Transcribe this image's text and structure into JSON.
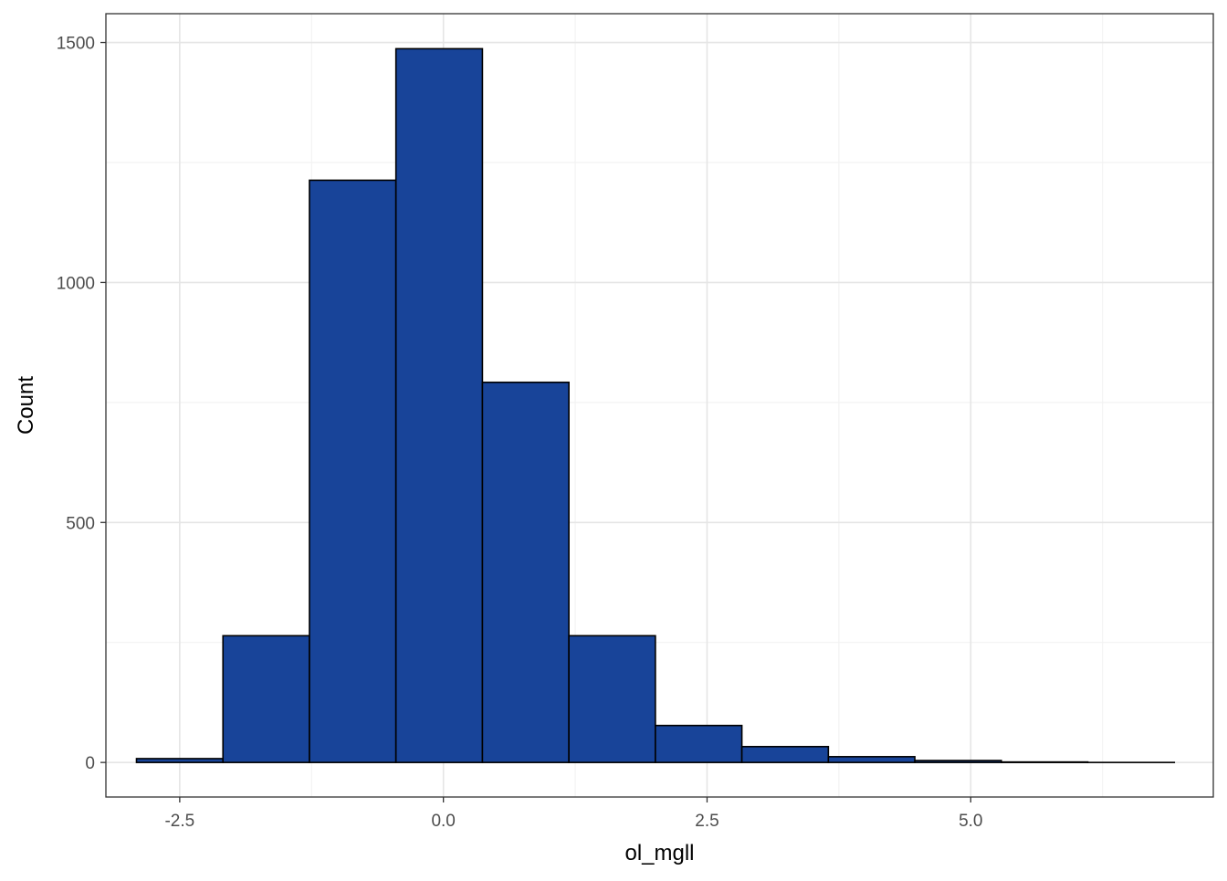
{
  "colors": {
    "bar_fill": "#184499",
    "bar_stroke": "#000000",
    "grid_major": "#e5e5e5",
    "grid_minor": "#f2f2f2",
    "panel_border": "#333333",
    "tick_text": "#4d4d4d"
  },
  "chart_data": {
    "type": "bar",
    "subtype": "histogram",
    "title": "",
    "xlabel": "ol_mgll",
    "ylabel": "Count",
    "xlim": [
      -3.2,
      7.3
    ],
    "ylim": [
      -72,
      1560
    ],
    "x_ticks": [
      -2.5,
      0.0,
      2.5,
      5.0
    ],
    "x_tick_labels": [
      "-2.5",
      "0.0",
      "2.5",
      "5.0"
    ],
    "y_ticks": [
      0,
      500,
      1000,
      1500
    ],
    "y_tick_labels": [
      "0",
      "500",
      "1000",
      "1500"
    ],
    "grid": true,
    "legend": "none",
    "bins": [
      {
        "x0": -2.91,
        "x1": -2.09,
        "count": 8
      },
      {
        "x0": -2.09,
        "x1": -1.27,
        "count": 264
      },
      {
        "x0": -1.27,
        "x1": -0.45,
        "count": 1213
      },
      {
        "x0": -0.45,
        "x1": 0.37,
        "count": 1487
      },
      {
        "x0": 0.37,
        "x1": 1.19,
        "count": 792
      },
      {
        "x0": 1.19,
        "x1": 2.01,
        "count": 264
      },
      {
        "x0": 2.01,
        "x1": 2.83,
        "count": 77
      },
      {
        "x0": 2.83,
        "x1": 3.65,
        "count": 33
      },
      {
        "x0": 3.65,
        "x1": 4.47,
        "count": 12
      },
      {
        "x0": 4.47,
        "x1": 5.29,
        "count": 4
      },
      {
        "x0": 5.29,
        "x1": 6.11,
        "count": 1
      },
      {
        "x0": 6.11,
        "x1": 6.93,
        "count": 0
      }
    ]
  }
}
